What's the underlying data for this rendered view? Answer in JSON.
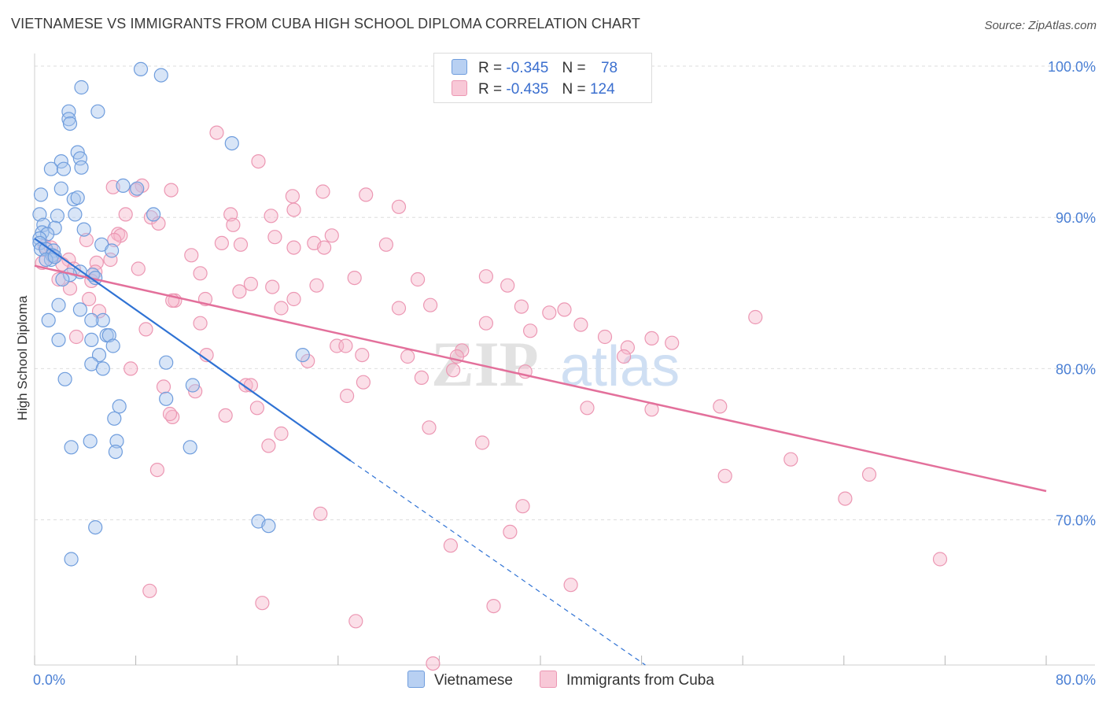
{
  "title": "VIETNAMESE VS IMMIGRANTS FROM CUBA HIGH SCHOOL DIPLOMA CORRELATION CHART",
  "source": "Source: ZipAtlas.com",
  "watermark": {
    "zip": "ZIP",
    "atlas": "atlas"
  },
  "legend": {
    "rows": [
      {
        "r_label": "R =",
        "r_value": "-0.345",
        "n_label": "N =",
        "n_value": "78"
      },
      {
        "r_label": "R =",
        "r_value": "-0.435",
        "n_label": "N =",
        "n_value": "124"
      }
    ]
  },
  "bottom_legend": [
    "Vietnamese",
    "Immigrants from Cuba"
  ],
  "colors": {
    "blue_fill": "#a9c6ee",
    "blue_stroke": "#6f9ddd",
    "blue_line": "#2f72d4",
    "pink_fill": "#f6b9cc",
    "pink_stroke": "#ec97b3",
    "pink_line": "#e3709b",
    "grid": "#dedede",
    "tick_text": "#4a7fd4"
  },
  "chart_data": {
    "type": "scatter",
    "title": "VIETNAMESE VS IMMIGRANTS FROM CUBA HIGH SCHOOL DIPLOMA CORRELATION CHART",
    "xlabel": "",
    "ylabel": "High School Diploma",
    "xlim": [
      0,
      80
    ],
    "ylim": [
      60.4,
      101.2
    ],
    "x_tick_labels": [
      "0.0%",
      "80.0%"
    ],
    "y_ticks": [
      70,
      80,
      90,
      100
    ],
    "y_tick_labels": [
      "70.0%",
      "80.0%",
      "90.0%",
      "100.0%"
    ],
    "grid": true,
    "legend_position": "top-center",
    "series": [
      {
        "name": "Vietnamese",
        "R": -0.345,
        "N": 78,
        "trend": {
          "x0": 0,
          "y0": 88.6,
          "x1": 25,
          "y1": 73.9,
          "dashed_to_x": 48.3,
          "dashed_to_y": 60.4
        },
        "points": [
          [
            8.4,
            99.8
          ],
          [
            10,
            99.4
          ],
          [
            3.7,
            98.6
          ],
          [
            5,
            97
          ],
          [
            2.7,
            97
          ],
          [
            2.7,
            96.5
          ],
          [
            2.8,
            96.2
          ],
          [
            15.6,
            94.9
          ],
          [
            3.4,
            94.3
          ],
          [
            3.6,
            93.9
          ],
          [
            2.1,
            93.7
          ],
          [
            1.3,
            93.2
          ],
          [
            3.7,
            93.3
          ],
          [
            2.3,
            93.2
          ],
          [
            7,
            92.1
          ],
          [
            8.1,
            91.9
          ],
          [
            2.1,
            91.9
          ],
          [
            0.5,
            91.5
          ],
          [
            3.1,
            91.2
          ],
          [
            3.4,
            91.3
          ],
          [
            9.4,
            90.2
          ],
          [
            3.2,
            90.2
          ],
          [
            0.4,
            90.2
          ],
          [
            1.8,
            90.1
          ],
          [
            0.7,
            89.5
          ],
          [
            1.6,
            89.3
          ],
          [
            3.9,
            89.2
          ],
          [
            0.6,
            89
          ],
          [
            1,
            88.9
          ],
          [
            0.4,
            88.6
          ],
          [
            0.4,
            88.3
          ],
          [
            5.3,
            88.2
          ],
          [
            0.5,
            87.9
          ],
          [
            6.1,
            87.8
          ],
          [
            0.9,
            87.9
          ],
          [
            1.5,
            87.8
          ],
          [
            1.4,
            87.5
          ],
          [
            1.3,
            87.2
          ],
          [
            0.9,
            87.2
          ],
          [
            1.6,
            87.4
          ],
          [
            3.6,
            86.4
          ],
          [
            4.6,
            86.2
          ],
          [
            2.8,
            86.2
          ],
          [
            4.8,
            86
          ],
          [
            2.2,
            85.9
          ],
          [
            1.9,
            84.2
          ],
          [
            3.6,
            83.9
          ],
          [
            1.1,
            83.2
          ],
          [
            5.4,
            83.2
          ],
          [
            4.5,
            83.2
          ],
          [
            5.7,
            82.2
          ],
          [
            5.9,
            82.2
          ],
          [
            4.5,
            81.9
          ],
          [
            1.9,
            81.9
          ],
          [
            6.2,
            81.5
          ],
          [
            5.1,
            80.9
          ],
          [
            21.2,
            80.9
          ],
          [
            10.4,
            80.4
          ],
          [
            4.5,
            80.3
          ],
          [
            5.4,
            80
          ],
          [
            2.4,
            79.3
          ],
          [
            12.5,
            78.9
          ],
          [
            10.4,
            78
          ],
          [
            6.7,
            77.5
          ],
          [
            6.3,
            76.7
          ],
          [
            4.4,
            75.2
          ],
          [
            6.5,
            75.2
          ],
          [
            2.9,
            74.8
          ],
          [
            12.3,
            74.8
          ],
          [
            6.4,
            74.5
          ],
          [
            4.8,
            69.5
          ],
          [
            17.7,
            69.9
          ],
          [
            18.5,
            69.6
          ],
          [
            2.9,
            67.4
          ]
        ]
      },
      {
        "name": "Immigrants from Cuba",
        "R": -0.435,
        "N": 124,
        "trend": {
          "x0": 0,
          "y0": 86.8,
          "x1": 80,
          "y1": 71.9
        },
        "points": [
          [
            14.4,
            95.6
          ],
          [
            17.7,
            93.7
          ],
          [
            20.4,
            91.4
          ],
          [
            22.8,
            91.7
          ],
          [
            26.2,
            91.5
          ],
          [
            28.8,
            90.7
          ],
          [
            8.5,
            92.1
          ],
          [
            10.8,
            91.8
          ],
          [
            8,
            91.8
          ],
          [
            6.2,
            92
          ],
          [
            7.2,
            90.2
          ],
          [
            9.2,
            90
          ],
          [
            15.5,
            90.2
          ],
          [
            18.7,
            90.1
          ],
          [
            20.5,
            90.5
          ],
          [
            9.8,
            89.6
          ],
          [
            15.7,
            89.5
          ],
          [
            6.6,
            88.9
          ],
          [
            6.8,
            88.8
          ],
          [
            19,
            88.7
          ],
          [
            23.5,
            88.8
          ],
          [
            14.8,
            88.3
          ],
          [
            22.1,
            88.3
          ],
          [
            16.3,
            88.2
          ],
          [
            27.8,
            88.2
          ],
          [
            0.8,
            88.1
          ],
          [
            1.3,
            88
          ],
          [
            4.1,
            88.5
          ],
          [
            6.3,
            88.5
          ],
          [
            20.5,
            88
          ],
          [
            22.9,
            88
          ],
          [
            6,
            87.2
          ],
          [
            12.4,
            87.5
          ],
          [
            0.6,
            87
          ],
          [
            1.5,
            87.4
          ],
          [
            2.7,
            87.2
          ],
          [
            4.9,
            87
          ],
          [
            2.2,
            86.9
          ],
          [
            3.1,
            86.6
          ],
          [
            8.2,
            86.6
          ],
          [
            4.8,
            86.4
          ],
          [
            13.1,
            86.3
          ],
          [
            25.3,
            86
          ],
          [
            30.3,
            85.9
          ],
          [
            35.7,
            86.1
          ],
          [
            4.5,
            85.8
          ],
          [
            1.9,
            85.9
          ],
          [
            2.8,
            85.3
          ],
          [
            17.1,
            85.6
          ],
          [
            18.8,
            85.4
          ],
          [
            22.3,
            85.5
          ],
          [
            37.4,
            85.5
          ],
          [
            16.2,
            85.1
          ],
          [
            4.3,
            84.6
          ],
          [
            11.1,
            84.5
          ],
          [
            10.9,
            84.5
          ],
          [
            13.5,
            84.6
          ],
          [
            20.5,
            84.6
          ],
          [
            31.3,
            84.2
          ],
          [
            38.5,
            84.1
          ],
          [
            19.5,
            84
          ],
          [
            28.8,
            84
          ],
          [
            5.1,
            83.8
          ],
          [
            40.7,
            83.7
          ],
          [
            41.9,
            83.9
          ],
          [
            57,
            83.4
          ],
          [
            13.1,
            83
          ],
          [
            35.7,
            83
          ],
          [
            39.2,
            82.5
          ],
          [
            43.2,
            82.9
          ],
          [
            8.8,
            82.6
          ],
          [
            3.3,
            82.1
          ],
          [
            45.1,
            82.1
          ],
          [
            48.8,
            82
          ],
          [
            50.4,
            81.7
          ],
          [
            23.9,
            81.5
          ],
          [
            24.6,
            81.5
          ],
          [
            33.8,
            81.2
          ],
          [
            46.9,
            81.4
          ],
          [
            13.6,
            80.9
          ],
          [
            25.9,
            80.9
          ],
          [
            29.5,
            80.8
          ],
          [
            33.4,
            80.8
          ],
          [
            46.6,
            80.8
          ],
          [
            21.6,
            80.5
          ],
          [
            33.1,
            79.9
          ],
          [
            38.8,
            79.8
          ],
          [
            7.6,
            80
          ],
          [
            30.6,
            79.4
          ],
          [
            26,
            79.1
          ],
          [
            16.7,
            78.9
          ],
          [
            17.1,
            78.9
          ],
          [
            12.7,
            78.5
          ],
          [
            10.2,
            78.8
          ],
          [
            24.7,
            78.2
          ],
          [
            17.6,
            77.4
          ],
          [
            43.7,
            77.4
          ],
          [
            48.8,
            77.3
          ],
          [
            54.2,
            77.5
          ],
          [
            10.9,
            76.8
          ],
          [
            10.7,
            77
          ],
          [
            15.1,
            76.9
          ],
          [
            31.2,
            76.1
          ],
          [
            19.5,
            75.7
          ],
          [
            35.4,
            75.1
          ],
          [
            18.5,
            74.9
          ],
          [
            59.8,
            74
          ],
          [
            9.7,
            73.3
          ],
          [
            66,
            73
          ],
          [
            54.6,
            72.9
          ],
          [
            64.1,
            71.4
          ],
          [
            38.6,
            70.9
          ],
          [
            22.6,
            70.4
          ],
          [
            37.6,
            69.2
          ],
          [
            32.9,
            68.3
          ],
          [
            71.6,
            67.4
          ],
          [
            42.4,
            65.7
          ],
          [
            9.1,
            65.3
          ],
          [
            18,
            64.5
          ],
          [
            36.3,
            64.3
          ],
          [
            25.4,
            63.3
          ],
          [
            31.5,
            60.5
          ]
        ]
      }
    ]
  }
}
